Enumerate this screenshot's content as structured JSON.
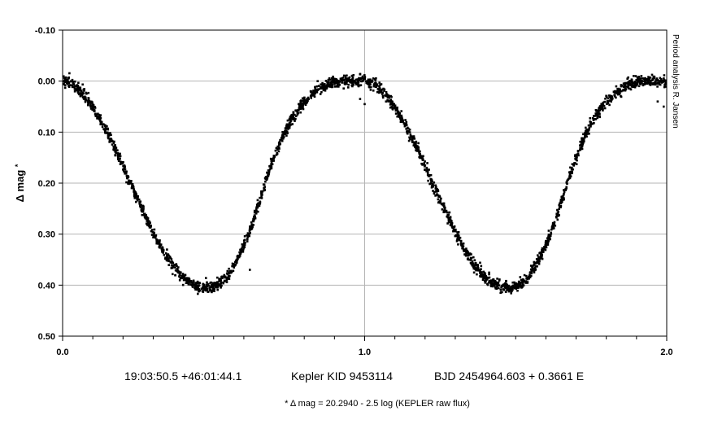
{
  "chart_data": {
    "type": "scatter",
    "title": "",
    "xlabel": "",
    "ylabel": "Δ mag *",
    "ylabel_prefix": "Δ",
    "ylabel_main": "mag",
    "ylabel_suffix": "*",
    "xlim": [
      0.0,
      2.0
    ],
    "ylim": [
      -0.1,
      0.5
    ],
    "y_inverted": true,
    "grid": true,
    "legend": "none",
    "x_ticks": [
      0.0,
      1.0,
      2.0
    ],
    "x_tick_labels": [
      "0.0",
      "1.0",
      "2.0"
    ],
    "y_ticks": [
      -0.1,
      0.0,
      0.1,
      0.2,
      0.3,
      0.4,
      0.5
    ],
    "y_tick_labels": [
      "-0.10",
      "0.00",
      "0.10",
      "0.20",
      "0.30",
      "0.40",
      "0.50"
    ],
    "caption_coords": "19:03:50.5 +46:01:44.1",
    "caption_object": "Kepler KID 9453114",
    "caption_ephemeris": "BJD 2454964.603 + 0.3661 E",
    "footnote": "* Δ mag = 20.2940 - 2.5 log (KEPLER raw flux)",
    "side_note": "Period analysis  R. Jansen",
    "marker_color": "#000000",
    "series": [
      {
        "x": [
          0.0,
          0.03,
          0.06,
          0.09,
          0.12,
          0.15,
          0.18,
          0.21,
          0.24,
          0.27,
          0.3,
          0.33,
          0.36,
          0.39,
          0.42,
          0.45,
          0.48,
          0.51,
          0.54,
          0.57,
          0.6,
          0.63,
          0.66,
          0.69,
          0.72,
          0.75,
          0.78,
          0.81,
          0.84,
          0.87,
          0.9,
          0.93,
          0.96,
          0.99,
          1.0,
          1.03,
          1.06,
          1.09,
          1.12,
          1.15,
          1.18,
          1.21,
          1.24,
          1.27,
          1.3,
          1.33,
          1.36,
          1.39,
          1.42,
          1.45,
          1.48,
          1.51,
          1.54,
          1.57,
          1.6,
          1.63,
          1.66,
          1.69,
          1.72,
          1.75,
          1.78,
          1.81,
          1.84,
          1.87,
          1.9,
          1.93,
          1.96,
          1.99,
          2.0
        ],
        "y": [
          0.0,
          0.005,
          0.02,
          0.042,
          0.07,
          0.103,
          0.14,
          0.18,
          0.22,
          0.26,
          0.297,
          0.33,
          0.358,
          0.38,
          0.395,
          0.403,
          0.405,
          0.4,
          0.385,
          0.358,
          0.322,
          0.276,
          0.22,
          0.165,
          0.12,
          0.083,
          0.055,
          0.034,
          0.018,
          0.008,
          0.002,
          0.0,
          0.0,
          0.0,
          0.0,
          0.005,
          0.02,
          0.042,
          0.07,
          0.103,
          0.14,
          0.18,
          0.22,
          0.26,
          0.297,
          0.33,
          0.358,
          0.38,
          0.395,
          0.403,
          0.405,
          0.4,
          0.385,
          0.358,
          0.322,
          0.276,
          0.22,
          0.165,
          0.12,
          0.083,
          0.055,
          0.034,
          0.018,
          0.008,
          0.002,
          0.0,
          0.0,
          0.0,
          0.0
        ]
      }
    ]
  }
}
